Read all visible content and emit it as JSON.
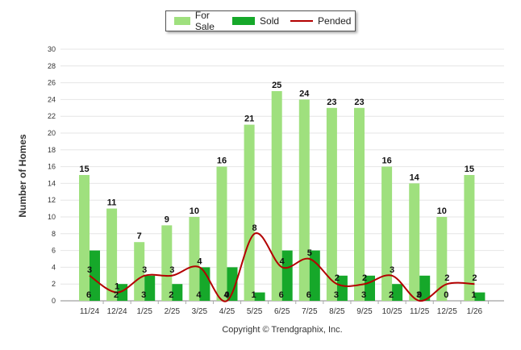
{
  "chart_data": {
    "type": "bar",
    "categories": [
      "11/24",
      "12/24",
      "1/25",
      "2/25",
      "3/25",
      "4/25",
      "5/25",
      "6/25",
      "7/25",
      "8/25",
      "9/25",
      "10/25",
      "11/25",
      "12/25",
      "1/26"
    ],
    "series": [
      {
        "name": "For Sale",
        "type": "bar",
        "color": "#9fe07e",
        "values": [
          15,
          11,
          7,
          9,
          10,
          16,
          21,
          25,
          24,
          23,
          23,
          16,
          14,
          10,
          15
        ]
      },
      {
        "name": "Sold",
        "type": "bar",
        "color": "#16a82a",
        "values": [
          6,
          2,
          3,
          2,
          4,
          4,
          1,
          6,
          6,
          3,
          3,
          2,
          3,
          0,
          1
        ]
      },
      {
        "name": "Pended",
        "type": "line",
        "color": "#b30000",
        "values": [
          3,
          1,
          3,
          3,
          4,
          0,
          8,
          4,
          5,
          2,
          2,
          3,
          0,
          2,
          2
        ]
      }
    ],
    "ylabel": "Number of Homes",
    "xlabel": "",
    "ylim": [
      0,
      30
    ],
    "yticks": [
      0,
      2,
      4,
      6,
      8,
      10,
      12,
      14,
      16,
      18,
      20,
      22,
      24,
      26,
      28,
      30
    ],
    "grid": true,
    "legend": "top-center"
  },
  "legend": {
    "items": [
      {
        "label": "For Sale",
        "color": "#9fe07e"
      },
      {
        "label": "Sold",
        "color": "#16a82a"
      },
      {
        "label": "Pended",
        "color": "#b30000"
      }
    ]
  },
  "footer": {
    "copyright": "Copyright © Trendgraphix, Inc."
  }
}
